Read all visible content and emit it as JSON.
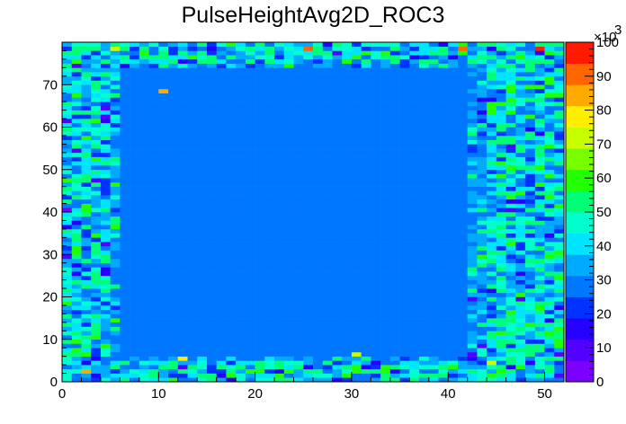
{
  "chart_data": {
    "type": "heatmap",
    "title": "PulseHeightAvg2D_ROC3",
    "xlabel": "",
    "ylabel": "",
    "x_bins": 52,
    "y_bins": 80,
    "xlim": [
      0,
      52
    ],
    "ylim": [
      0,
      80
    ],
    "x_ticks": [
      0,
      10,
      20,
      30,
      40,
      50
    ],
    "y_ticks": [
      0,
      10,
      20,
      30,
      40,
      50,
      60,
      70
    ],
    "palette_scale": {
      "min": 0,
      "max": 100000,
      "tick_labels": [
        "0",
        "10",
        "20",
        "30",
        "40",
        "50",
        "60",
        "70",
        "80",
        "90",
        "100"
      ],
      "exponent_label": "×10",
      "exponent_power": "3"
    },
    "colors": [
      "#7a00ff",
      "#5200ff",
      "#2600ff",
      "#0033ff",
      "#0077ff",
      "#00aaff",
      "#00e5ff",
      "#00ffcc",
      "#00ff77",
      "#22ff00",
      "#77ff00",
      "#c8ff00",
      "#ffee00",
      "#ffaa00",
      "#ff6600",
      "#ff1a00"
    ],
    "dominant_value": 31000,
    "plateau_region": {
      "x": [
        6,
        42
      ],
      "y": [
        6,
        74
      ]
    },
    "edge_value_range": [
      22000,
      58000
    ],
    "hot_cells": [
      {
        "x": 2,
        "y": 40,
        "value": 62000
      },
      {
        "x": 2,
        "y": 2,
        "value": 85000
      },
      {
        "x": 10,
        "y": 68,
        "value": 82000
      },
      {
        "x": 25,
        "y": 78,
        "value": 88000
      },
      {
        "x": 41,
        "y": 78,
        "value": 92000
      },
      {
        "x": 49,
        "y": 78,
        "value": 95000
      },
      {
        "x": 5,
        "y": 78,
        "value": 72000
      },
      {
        "x": 12,
        "y": 5,
        "value": 78000
      },
      {
        "x": 30,
        "y": 6,
        "value": 70000
      },
      {
        "x": 44,
        "y": 4,
        "value": 74000
      }
    ],
    "low_cells": [
      {
        "x": 0,
        "y": 40,
        "value": 5000
      },
      {
        "x": 51,
        "y": 6,
        "value": 8000
      }
    ]
  }
}
